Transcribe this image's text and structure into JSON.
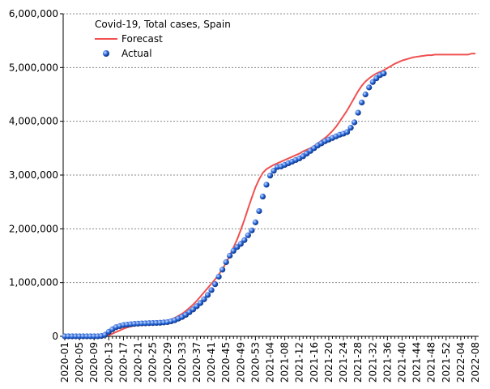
{
  "chart_data": {
    "type": "line",
    "title": "Covid-19, Total cases, Spain",
    "categories": [
      "2020-01",
      null,
      null,
      null,
      "2020-05",
      null,
      null,
      null,
      "2020-09",
      null,
      null,
      null,
      "2020-13",
      null,
      null,
      null,
      "2020-17",
      null,
      null,
      null,
      "2020-21",
      null,
      null,
      null,
      "2020-25",
      null,
      null,
      null,
      "2020-29",
      null,
      null,
      null,
      "2020-33",
      null,
      null,
      null,
      "2020-37",
      null,
      null,
      null,
      "2020-41",
      null,
      null,
      null,
      "2020-45",
      null,
      null,
      null,
      "2020-49",
      null,
      null,
      null,
      "2020-53",
      null,
      null,
      null,
      "2021-04",
      null,
      null,
      null,
      "2021-08",
      null,
      null,
      null,
      "2021-12",
      null,
      null,
      null,
      "2021-16",
      null,
      null,
      null,
      "2021-20",
      null,
      null,
      null,
      "2021-24",
      null,
      null,
      null,
      "2021-28",
      null,
      null,
      null,
      "2021-32",
      null,
      null,
      null,
      "2021-36",
      null,
      null,
      null,
      "2021-40",
      null,
      null,
      null,
      "2021-44",
      null,
      null,
      null,
      "2021-48",
      null,
      null,
      null,
      "2021-52",
      null,
      null,
      null,
      "2022-04",
      null,
      null,
      null,
      "2022-08"
    ],
    "series": [
      {
        "name": "Forecast",
        "color": "#f05050",
        "marker": "line",
        "values": [
          null,
          null,
          null,
          null,
          null,
          null,
          null,
          null,
          null,
          null,
          null,
          0,
          20000,
          50000,
          80000,
          110000,
          140000,
          165000,
          185000,
          200000,
          215000,
          225000,
          235000,
          245000,
          255000,
          262000,
          270000,
          280000,
          295000,
          315000,
          345000,
          380000,
          420000,
          470000,
          530000,
          590000,
          660000,
          740000,
          820000,
          900000,
          980000,
          1060000,
          1150000,
          1250000,
          1370000,
          1500000,
          1650000,
          1800000,
          1980000,
          2170000,
          2380000,
          2580000,
          2770000,
          2920000,
          3040000,
          3110000,
          3150000,
          3190000,
          3220000,
          3250000,
          3280000,
          3310000,
          3340000,
          3370000,
          3400000,
          3440000,
          3470000,
          3500000,
          3540000,
          3590000,
          3640000,
          3690000,
          3750000,
          3820000,
          3900000,
          4000000,
          4100000,
          4200000,
          4320000,
          4440000,
          4560000,
          4660000,
          4740000,
          4800000,
          4850000,
          4890000,
          4920000,
          4950000,
          4990000,
          5030000,
          5070000,
          5100000,
          5130000,
          5150000,
          5170000,
          5190000,
          5200000,
          5210000,
          5220000,
          5230000,
          5230000,
          5240000,
          5240000,
          5240000,
          5240000,
          5240000,
          5240000,
          5240000,
          5240000,
          5240000,
          5240000,
          5260000,
          5260000
        ]
      },
      {
        "name": "Actual",
        "color": "#1f5fd6",
        "marker": "dot",
        "values": [
          0,
          0,
          0,
          0,
          0,
          0,
          0,
          0,
          0,
          600,
          6000,
          28000,
          85000,
          130000,
          170000,
          190000,
          210000,
          218000,
          225000,
          232000,
          236000,
          240000,
          242000,
          245000,
          247000,
          249000,
          252000,
          258000,
          265000,
          280000,
          300000,
          330000,
          360000,
          400000,
          450000,
          500000,
          560000,
          620000,
          690000,
          770000,
          860000,
          970000,
          1110000,
          1240000,
          1380000,
          1500000,
          1590000,
          1660000,
          1720000,
          1790000,
          1880000,
          1970000,
          2120000,
          2330000,
          2600000,
          2820000,
          2990000,
          3080000,
          3150000,
          3160000,
          3190000,
          3220000,
          3250000,
          3280000,
          3310000,
          3350000,
          3400000,
          3450000,
          3500000,
          3550000,
          3590000,
          3630000,
          3660000,
          3690000,
          3720000,
          3750000,
          3770000,
          3800000,
          3880000,
          3980000,
          4160000,
          4350000,
          4500000,
          4630000,
          4730000,
          4800000,
          4860000,
          4890000,
          null,
          null,
          null,
          null,
          null,
          null,
          null,
          null,
          null,
          null,
          null,
          null,
          null,
          null,
          null,
          null,
          null,
          null,
          null,
          null,
          null,
          null,
          null,
          null,
          null
        ]
      }
    ],
    "ylim": [
      0,
      6000000
    ],
    "yticks": [
      0,
      {
        "value": 1000000,
        "label": "1,000,000"
      },
      {
        "value": 2000000,
        "label": "2,000,000"
      },
      {
        "value": 3000000,
        "label": "3,000,000"
      },
      {
        "value": 4000000,
        "label": "4,000,000"
      },
      {
        "value": 5000000,
        "label": "5,000,000"
      },
      {
        "value": 6000000,
        "label": "6,000,000"
      }
    ],
    "grid": true
  }
}
